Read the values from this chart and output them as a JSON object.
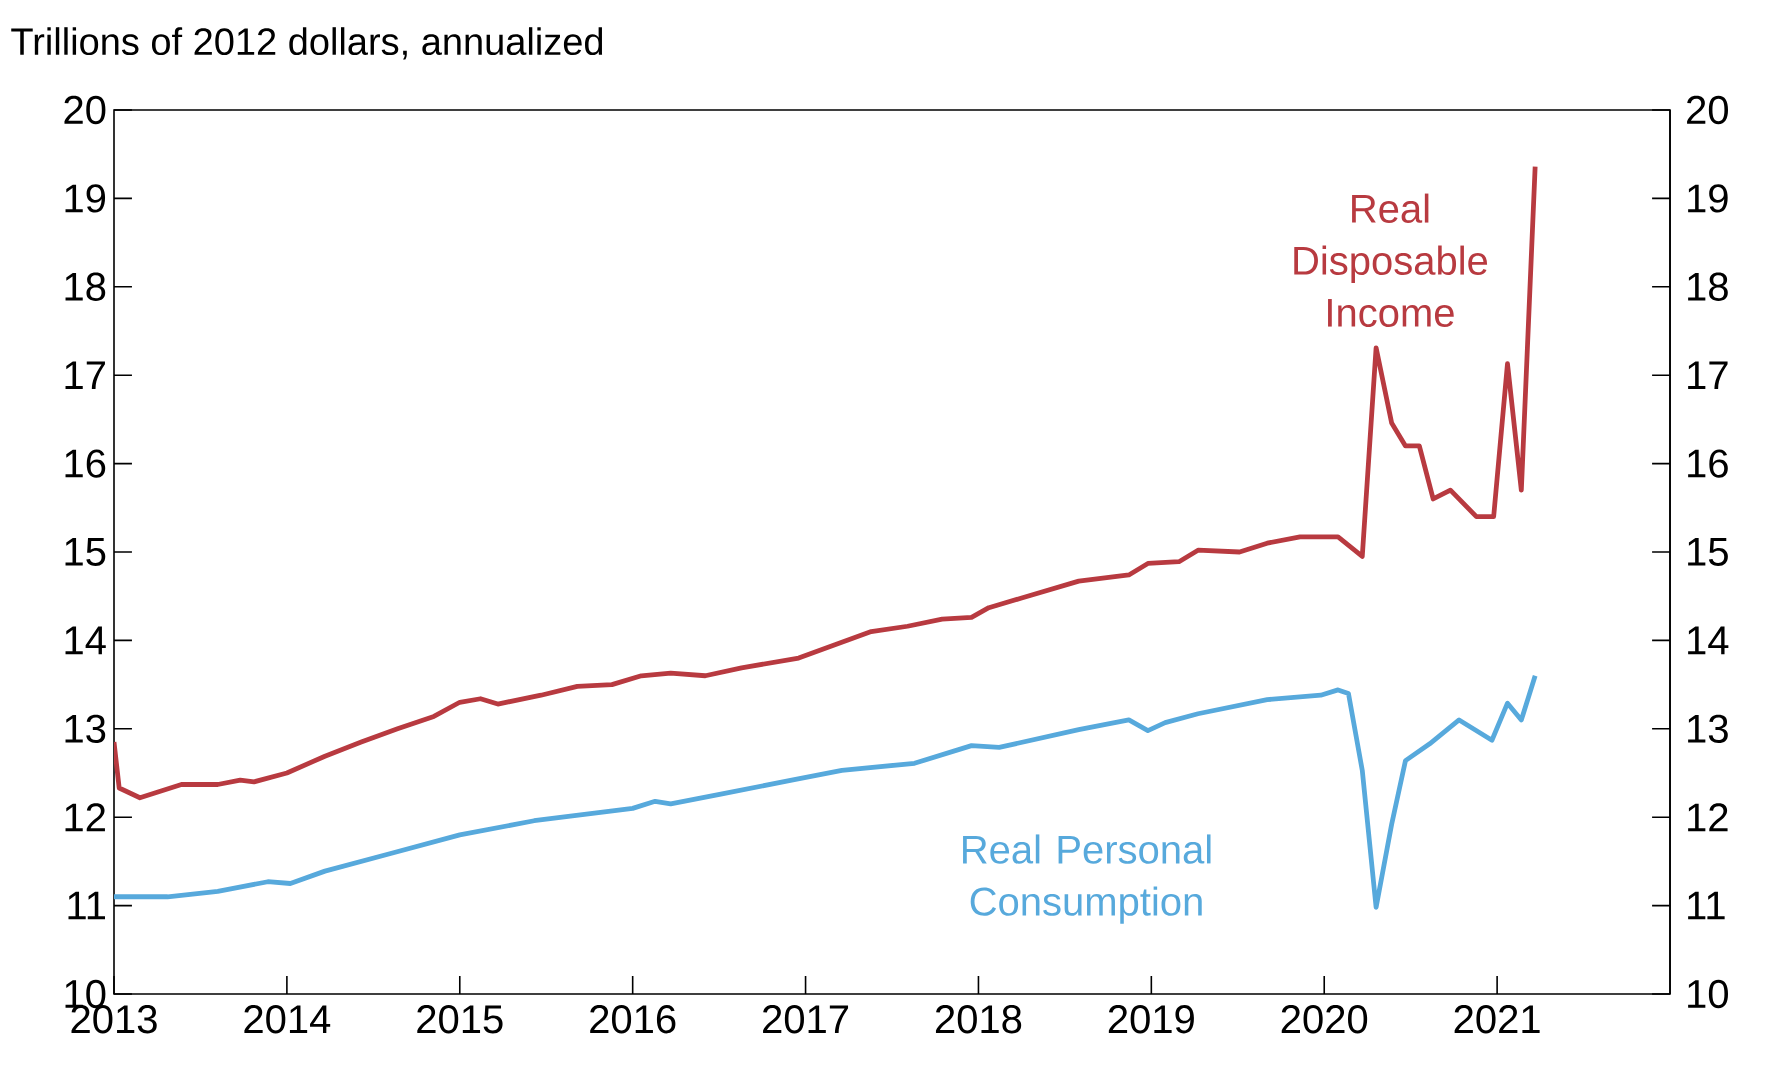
{
  "chart_data": {
    "type": "line",
    "title": "Trillions of 2012 dollars, annualized",
    "xlim": [
      2013,
      2022
    ],
    "xticks": [
      2013,
      2014,
      2015,
      2016,
      2017,
      2018,
      2019,
      2020,
      2021
    ],
    "ylim": [
      10,
      20
    ],
    "yticks": [
      10,
      11,
      12,
      13,
      14,
      15,
      16,
      17,
      18,
      19,
      20
    ],
    "y2lim": [
      10,
      20
    ],
    "y2ticks": [
      10,
      11,
      12,
      13,
      14,
      15,
      16,
      17,
      18,
      19,
      20
    ],
    "grid": false,
    "legend": false,
    "marker": "none",
    "line_style": "solid",
    "series": [
      {
        "name": "Real Disposable Income",
        "color": "#b83a40",
        "x": [
          2013.0,
          2013.03,
          2013.15,
          2013.39,
          2013.6,
          2013.73,
          2013.81,
          2014.0,
          2014.22,
          2014.43,
          2014.64,
          2014.85,
          2015.0,
          2015.12,
          2015.22,
          2015.47,
          2015.68,
          2015.88,
          2016.05,
          2016.22,
          2016.42,
          2016.63,
          2016.96,
          2017.17,
          2017.38,
          2017.59,
          2017.79,
          2017.96,
          2018.06,
          2018.25,
          2018.58,
          2018.87,
          2018.98,
          2019.16,
          2019.27,
          2019.51,
          2019.67,
          2019.86,
          2020.08,
          2020.22,
          2020.3,
          2020.39,
          2020.47,
          2020.55,
          2020.63,
          2020.73,
          2020.88,
          2020.98,
          2021.06,
          2021.14,
          2021.22
        ],
        "values": [
          12.85,
          12.33,
          12.22,
          12.37,
          12.37,
          12.42,
          12.4,
          12.5,
          12.69,
          12.85,
          13.0,
          13.14,
          13.3,
          13.34,
          13.28,
          13.38,
          13.48,
          13.5,
          13.6,
          13.63,
          13.6,
          13.69,
          13.8,
          13.95,
          14.1,
          14.16,
          14.24,
          14.26,
          14.37,
          14.48,
          14.67,
          14.74,
          14.87,
          14.89,
          15.02,
          15.0,
          15.1,
          15.17,
          15.17,
          14.95,
          17.31,
          16.46,
          16.2,
          16.2,
          15.6,
          15.7,
          15.4,
          15.4,
          17.13,
          15.7,
          19.36
        ]
      },
      {
        "name": "Real Personal Consumption",
        "color": "#57a9dc",
        "x": [
          2013.0,
          2013.31,
          2013.6,
          2013.89,
          2014.02,
          2014.22,
          2014.6,
          2015.0,
          2015.43,
          2016.0,
          2016.13,
          2016.22,
          2016.51,
          2016.92,
          2017.21,
          2017.63,
          2017.96,
          2018.12,
          2018.58,
          2018.87,
          2018.98,
          2019.08,
          2019.27,
          2019.67,
          2019.98,
          2020.08,
          2020.14,
          2020.22,
          2020.3,
          2020.39,
          2020.47,
          2020.61,
          2020.78,
          2020.97,
          2021.06,
          2021.14,
          2021.22
        ],
        "values": [
          11.1,
          11.1,
          11.16,
          11.27,
          11.25,
          11.39,
          11.59,
          11.8,
          11.96,
          12.1,
          12.18,
          12.15,
          12.26,
          12.42,
          12.53,
          12.61,
          12.81,
          12.79,
          12.99,
          13.1,
          12.98,
          13.07,
          13.17,
          13.33,
          13.38,
          13.44,
          13.4,
          12.53,
          10.98,
          11.92,
          12.64,
          12.83,
          13.1,
          12.87,
          13.29,
          13.1,
          13.6
        ]
      }
    ]
  }
}
